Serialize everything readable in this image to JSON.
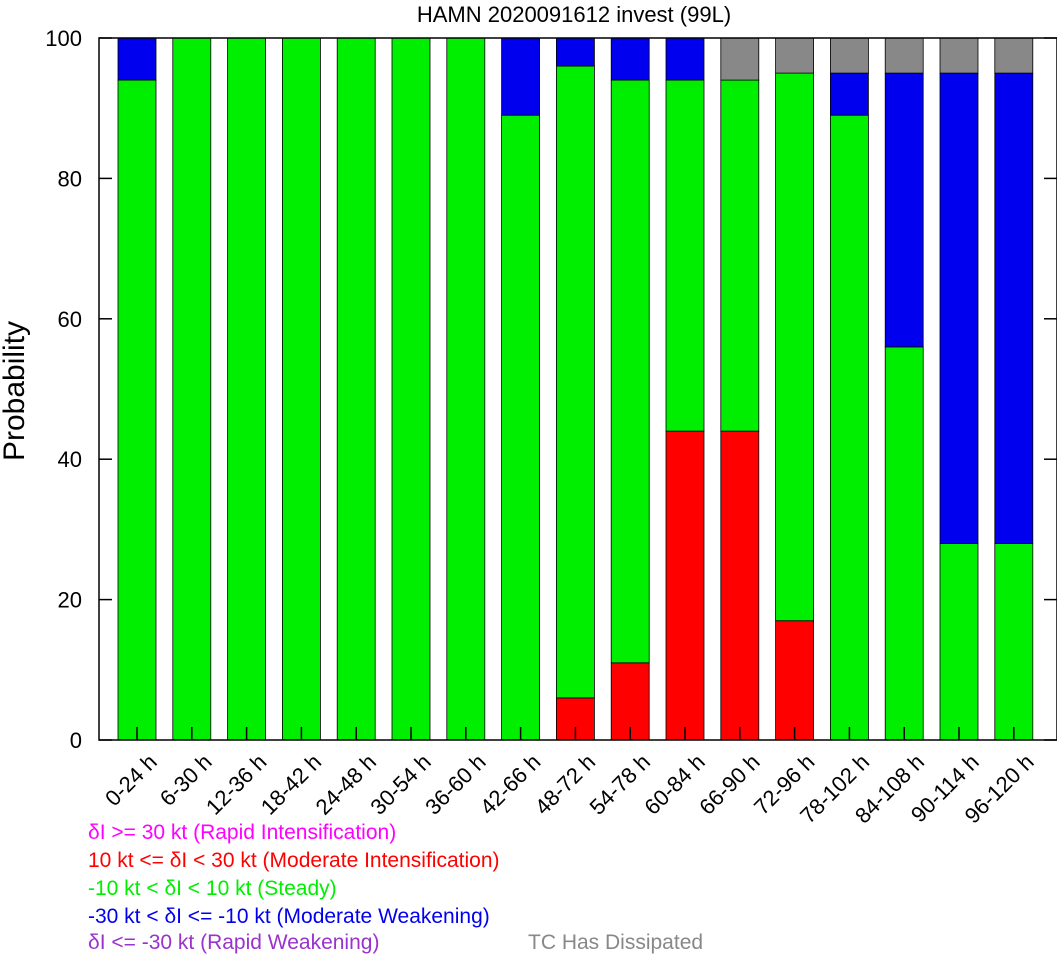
{
  "chart_data": {
    "type": "bar",
    "stacked": true,
    "title": "HAMN 2020091612 invest (99L)",
    "xlabel": "",
    "ylabel": "Probability",
    "ylim": [
      0,
      100
    ],
    "yticks": [
      0,
      20,
      40,
      60,
      80,
      100
    ],
    "grid": false,
    "categories": [
      "0-24 h",
      "6-30 h",
      "12-36 h",
      "18-42 h",
      "24-48 h",
      "30-54 h",
      "36-60 h",
      "42-66 h",
      "48-72 h",
      "54-78 h",
      "60-84 h",
      "66-90 h",
      "72-96 h",
      "78-102 h",
      "84-108 h",
      "90-114 h",
      "96-120 h"
    ],
    "series": [
      {
        "name": "δI >= 30 kt (Rapid Intensification)",
        "color": "#ff00ff",
        "values": [
          0,
          0,
          0,
          0,
          0,
          0,
          0,
          0,
          0,
          0,
          0,
          0,
          0,
          0,
          0,
          0,
          0
        ]
      },
      {
        "name": "10 kt <= δI < 30 kt (Moderate Intensification)",
        "color": "#ff0000",
        "values": [
          0,
          0,
          0,
          0,
          0,
          0,
          0,
          0,
          6,
          11,
          44,
          44,
          17,
          0,
          0,
          0,
          0
        ]
      },
      {
        "name": "-10 kt < δI < 10 kt (Steady)",
        "color": "#00ee00",
        "values": [
          94,
          100,
          100,
          100,
          100,
          100,
          100,
          89,
          90,
          83,
          50,
          50,
          78,
          89,
          56,
          28,
          28
        ]
      },
      {
        "name": "-30 kt < δI <= -10 kt (Moderate Weakening)",
        "color": "#0000ee",
        "values": [
          6,
          0,
          0,
          0,
          0,
          0,
          0,
          11,
          4,
          6,
          6,
          0,
          0,
          6,
          39,
          67,
          67
        ]
      },
      {
        "name": "δI <= -30 kt (Rapid Weakening)",
        "color": "#9a32cd",
        "values": [
          0,
          0,
          0,
          0,
          0,
          0,
          0,
          0,
          0,
          0,
          0,
          0,
          0,
          0,
          0,
          0,
          0
        ]
      },
      {
        "name": "TC Has Dissipated",
        "color": "#888888",
        "values": [
          0,
          0,
          0,
          0,
          0,
          0,
          0,
          0,
          0,
          0,
          0,
          6,
          5,
          5,
          5,
          5,
          5
        ]
      }
    ]
  }
}
